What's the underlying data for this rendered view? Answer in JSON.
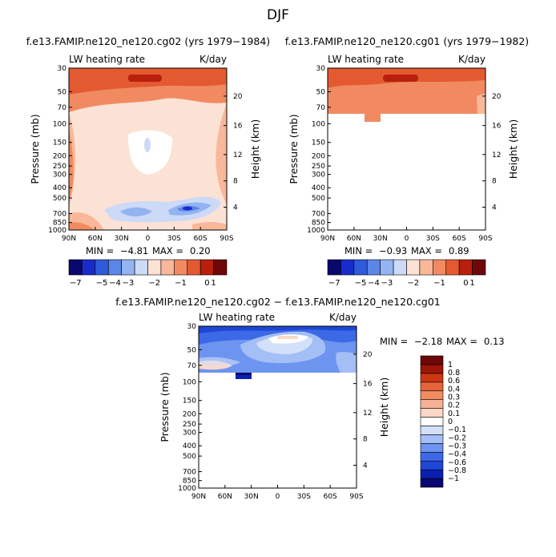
{
  "title": "DJF",
  "colors": {
    "scale11_abs": [
      "#08086e",
      "#1a2bcc",
      "#2e5adb",
      "#5a86e8",
      "#93b3f2",
      "#ccd9f7",
      "#fbe2d4",
      "#f8b899",
      "#f18a61",
      "#e45a30",
      "#b81f0c",
      "#6e0707"
    ],
    "scale_diff": [
      "#08086e",
      "#0a1fb0",
      "#2046d8",
      "#3c6ae6",
      "#6d94ef",
      "#a4bef6",
      "#d3e0f9",
      "#ffffff",
      "#fbd8c6",
      "#f6b294",
      "#f08c62",
      "#e5643b",
      "#cc3813",
      "#9e1409",
      "#6e0707"
    ]
  },
  "chart_data": [
    {
      "type": "heatmap",
      "panel": "top-left",
      "title": "f.e13.FAMIP.ne120_ne120.cg02 (yrs 1979−1984)",
      "left_label": "LW heating rate",
      "right_label": "K/day",
      "xlabel": "",
      "ylabel": "Pressure (mb)",
      "ylabel_right": "Height (km)",
      "x_ticks": [
        "90N",
        "60N",
        "30N",
        "0",
        "30S",
        "60S",
        "90S"
      ],
      "y_ticks": [
        "30",
        "50",
        "70",
        "100",
        "150",
        "200",
        "250",
        "300",
        "400",
        "500",
        "700",
        "850",
        "1000"
      ],
      "height_ticks": [
        "20",
        "16",
        "12",
        "8",
        "4"
      ],
      "ylim": [
        1000,
        30
      ],
      "stats": {
        "min_label": "MIN =",
        "min": "−4.81",
        "max_label": "MAX =",
        "max": "0.20"
      },
      "colorbar_labels": [
        "−7",
        "−5",
        "−4",
        "−3",
        "−2",
        "−1",
        "0",
        "1"
      ],
      "description": "Upper troposphere about −2 K/day; near-surface tropical/southern minimum around −4.8 K/day"
    },
    {
      "type": "heatmap",
      "panel": "top-right",
      "title": "f.e13.FAMIP.ne120_ne120.cg01 (yrs 1979−1982)",
      "left_label": "LW heating rate",
      "right_label": "K/day",
      "xlabel": "",
      "ylabel": "Pressure (mb)",
      "ylabel_right": "Height (km)",
      "x_ticks": [
        "90N",
        "60N",
        "30N",
        "0",
        "30S",
        "60S",
        "90S"
      ],
      "y_ticks": [
        "30",
        "50",
        "70",
        "100",
        "150",
        "200",
        "250",
        "300",
        "400",
        "500",
        "700",
        "850",
        "1000"
      ],
      "height_ticks": [
        "20",
        "16",
        "12",
        "8",
        "4"
      ],
      "ylim": [
        1000,
        30
      ],
      "stats": {
        "min_label": "MIN =",
        "min": "−0.93",
        "max_label": "MAX =",
        "max": "0.89"
      },
      "colorbar_labels": [
        "−7",
        "−5",
        "−4",
        "−3",
        "−2",
        "−1",
        "0",
        "1"
      ],
      "description": "Data only above 300 mb"
    },
    {
      "type": "heatmap",
      "panel": "bottom",
      "title": "f.e13.FAMIP.ne120_ne120.cg02 − f.e13.FAMIP.ne120_ne120.cg01",
      "left_label": "LW heating rate",
      "right_label": "K/day",
      "xlabel": "",
      "ylabel": "Pressure (mb)",
      "ylabel_right": "Height (km)",
      "x_ticks": [
        "90N",
        "60N",
        "30N",
        "0",
        "30S",
        "60S",
        "90S"
      ],
      "y_ticks": [
        "30",
        "50",
        "70",
        "100",
        "150",
        "200",
        "250",
        "300",
        "400",
        "500",
        "700",
        "850",
        "1000"
      ],
      "height_ticks": [
        "20",
        "16",
        "12",
        "8",
        "4"
      ],
      "ylim": [
        1000,
        30
      ],
      "stats": {
        "min_label": "MIN =",
        "min": "−2.18",
        "max_label": "MAX =",
        "max": "0.13"
      },
      "colorbar_labels": [
        "1",
        "0.8",
        "0.6",
        "0.4",
        "0.3",
        "0.2",
        "0.1",
        "0",
        "−0.1",
        "−0.2",
        "−0.3",
        "−0.4",
        "−0.6",
        "−0.8",
        "−1"
      ],
      "description": "Difference field, data only above 300 mb"
    }
  ]
}
